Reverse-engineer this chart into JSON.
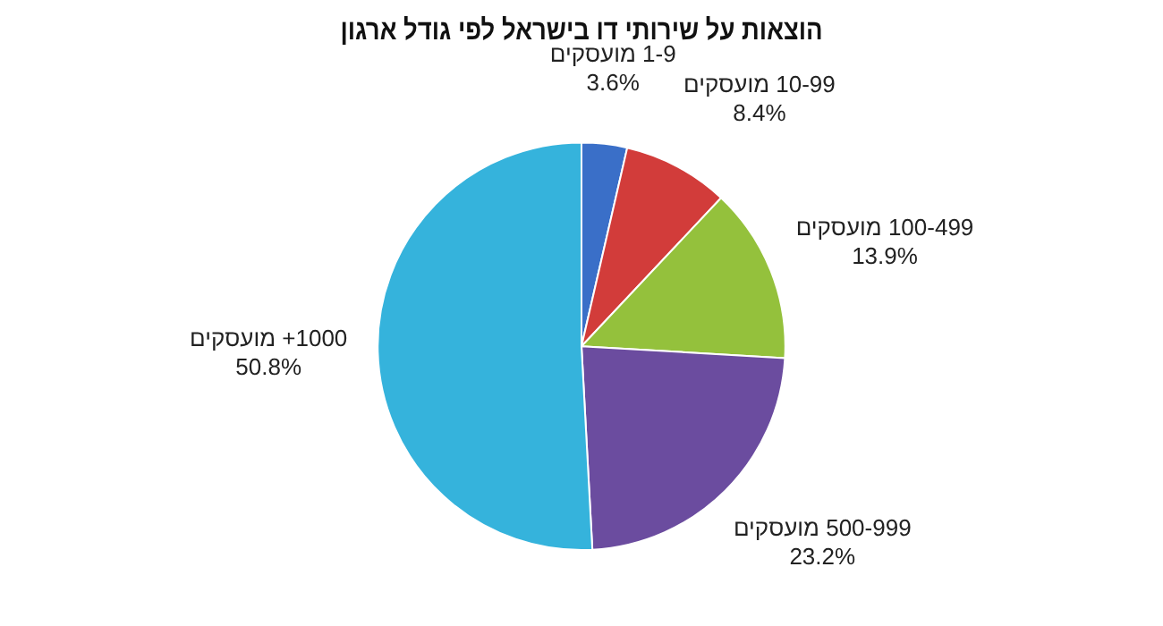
{
  "chart_data": {
    "type": "pie",
    "title": "הוצאות על שירותי דו בישראל לפי גודל ארגון",
    "categories": [
      "1-9 מועסקים",
      "10-99 מועסקים",
      "100-499 מועסקים",
      "500-999 מועסקים",
      "1000+ מועסקים"
    ],
    "values": [
      3.6,
      8.4,
      13.9,
      23.2,
      50.8
    ],
    "value_labels": [
      "3.6%",
      "8.4%",
      "13.9%",
      "23.2%",
      "50.8%"
    ],
    "colors": [
      "#3a6fc8",
      "#d23c3a",
      "#94c13c",
      "#6b4c9f",
      "#35b3dc"
    ],
    "legend": false
  }
}
